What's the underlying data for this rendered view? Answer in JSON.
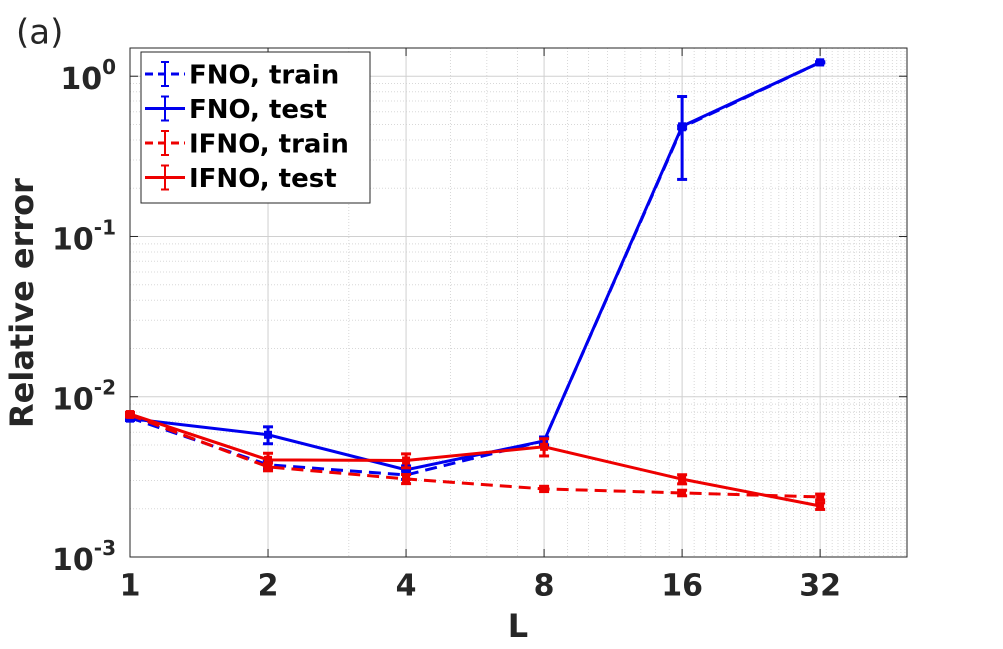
{
  "chart_data": {
    "type": "line",
    "panel_label": "(a)",
    "xlabel": "L",
    "ylabel": "Relative error",
    "x": [
      1,
      2,
      4,
      8,
      16,
      32
    ],
    "xscale": "log2",
    "yscale": "log",
    "xlim": [
      1,
      49.5
    ],
    "ylim": [
      0.001,
      1.5
    ],
    "xticks": [
      1,
      2,
      4,
      8,
      16,
      32
    ],
    "yticks": [
      {
        "value": 0.001,
        "label": "10",
        "exponent": "-3"
      },
      {
        "value": 0.01,
        "label": "10",
        "exponent": "-2"
      },
      {
        "value": 0.1,
        "label": "10",
        "exponent": "-1"
      },
      {
        "value": 1,
        "label": "10",
        "exponent": "0"
      }
    ],
    "grid": true,
    "minor_grid": true,
    "legend": "upper-left",
    "series": [
      {
        "name": "FNO, train",
        "color": "#0000ee",
        "dashed": true,
        "values": [
          0.0074,
          0.00376,
          0.00325,
          0.00531,
          0.48,
          1.22
        ],
        "errors": [
          0.0002,
          0.0002,
          0.0002,
          0.0003,
          0.01,
          0.01
        ]
      },
      {
        "name": "FNO, test",
        "color": "#0000ee",
        "dashed": false,
        "values": [
          0.0073,
          0.00579,
          0.0035,
          0.0053,
          0.487,
          1.22
        ],
        "errors": [
          0.0002,
          0.0007,
          0.0002,
          0.0003,
          0.26,
          0.01
        ]
      },
      {
        "name": "IFNO, train",
        "color": "#ee0000",
        "dashed": true,
        "values": [
          0.0077,
          0.00365,
          0.00307,
          0.00266,
          0.00251,
          0.00237
        ],
        "errors": [
          0.0002,
          0.0002,
          0.0002,
          0.0001,
          0.0001,
          0.0001
        ]
      },
      {
        "name": "IFNO, test",
        "color": "#ee0000",
        "dashed": false,
        "values": [
          0.0078,
          0.00404,
          0.004,
          0.00487,
          0.00306,
          0.00208
        ],
        "errors": [
          0.0002,
          0.0004,
          0.0004,
          0.0006,
          0.0002,
          0.0001
        ]
      }
    ]
  }
}
